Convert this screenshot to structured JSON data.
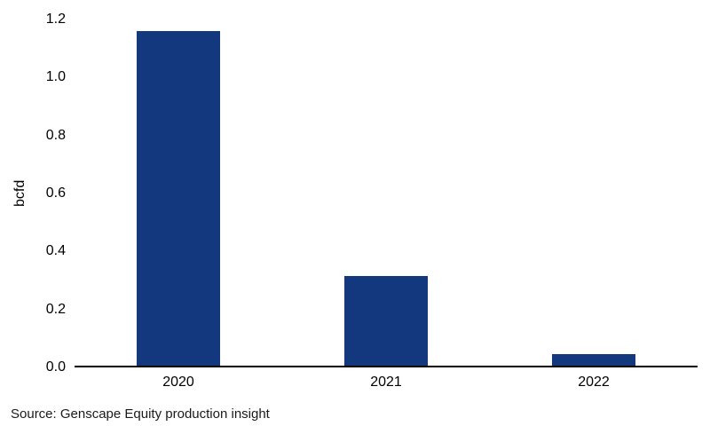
{
  "figure": {
    "source_note": "Source: Genscape Equity production insight"
  },
  "chart_data": {
    "type": "bar",
    "categories": [
      "2020",
      "2021",
      "2022"
    ],
    "values": [
      1.16,
      0.31,
      0.04
    ],
    "title": "",
    "xlabel": "",
    "ylabel": "bcfd",
    "ylim": [
      0,
      1.2
    ],
    "yticks": [
      0.0,
      0.2,
      0.4,
      0.6,
      0.8,
      1.0,
      1.2
    ],
    "bar_color": "#14387E",
    "axis_line_color": "#000000",
    "grid": false,
    "legend": false
  }
}
